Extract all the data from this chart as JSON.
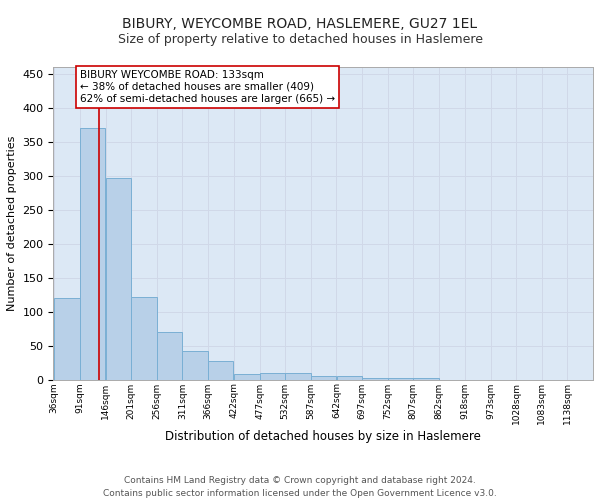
{
  "title": "BIBURY, WEYCOMBE ROAD, HASLEMERE, GU27 1EL",
  "subtitle": "Size of property relative to detached houses in Haslemere",
  "xlabel_title": "Distribution of detached houses by size in Haslemere",
  "ylabel": "Number of detached properties",
  "bar_color": "#b8d0e8",
  "bar_edge_color": "#7aafd4",
  "grid_color": "#d0d8e8",
  "background_color": "#dce8f5",
  "tick_labels": [
    "36sqm",
    "91sqm",
    "146sqm",
    "201sqm",
    "256sqm",
    "311sqm",
    "366sqm",
    "422sqm",
    "477sqm",
    "532sqm",
    "587sqm",
    "642sqm",
    "697sqm",
    "752sqm",
    "807sqm",
    "862sqm",
    "918sqm",
    "973sqm",
    "1028sqm",
    "1083sqm",
    "1138sqm"
  ],
  "bar_heights": [
    120,
    370,
    297,
    122,
    70,
    42,
    28,
    8,
    10,
    10,
    5,
    5,
    2,
    2,
    2,
    0,
    0,
    0,
    0,
    0
  ],
  "bin_edges": [
    36,
    91,
    146,
    201,
    256,
    311,
    366,
    422,
    477,
    532,
    587,
    642,
    697,
    752,
    807,
    862,
    918,
    973,
    1028,
    1083,
    1138
  ],
  "red_line_x": 133,
  "red_line_color": "#cc0000",
  "annotation_text": "BIBURY WEYCOMBE ROAD: 133sqm\n← 38% of detached houses are smaller (409)\n62% of semi-detached houses are larger (665) →",
  "annotation_box_color": "#ffffff",
  "annotation_box_edge": "#cc0000",
  "ylim": [
    0,
    460
  ],
  "yticks": [
    0,
    50,
    100,
    150,
    200,
    250,
    300,
    350,
    400,
    450
  ],
  "footer_text": "Contains HM Land Registry data © Crown copyright and database right 2024.\nContains public sector information licensed under the Open Government Licence v3.0.",
  "title_fontsize": 10,
  "subtitle_fontsize": 9,
  "annotation_fontsize": 7.5,
  "footer_fontsize": 6.5
}
